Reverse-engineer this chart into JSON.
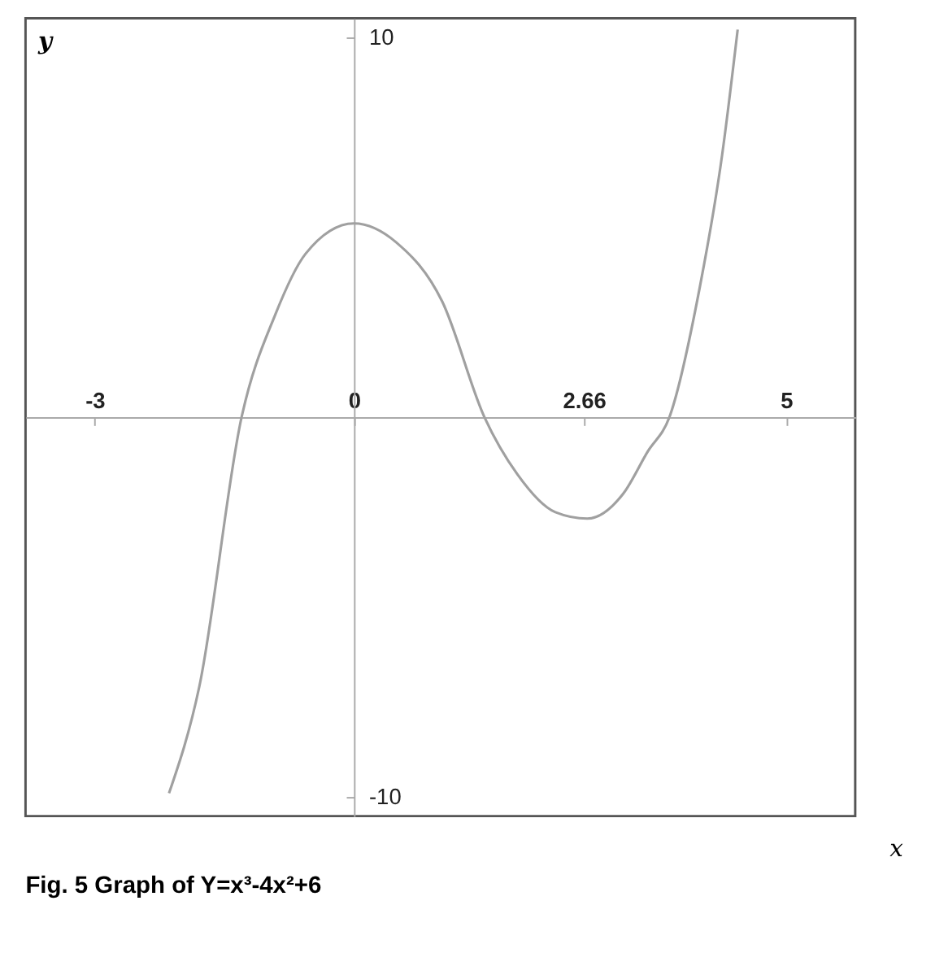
{
  "chart_data": {
    "type": "line",
    "title": "Fig. 5 Graph of Y=x³-4x²+6",
    "xlabel": "x",
    "ylabel": "y",
    "x": [
      -2.14,
      -1.79,
      -1.3,
      -0.91,
      -0.56,
      0,
      0.49,
      1.02,
      1.51,
      1.89,
      2.33,
      2.7,
      3.12,
      3.4,
      3.65,
      4.0,
      4.26,
      4.44
    ],
    "series": [
      {
        "color": "#a0a0a0",
        "values": [
          -9.9,
          -7.1,
          0,
          2.7,
          4.3,
          5.1,
          4.6,
          3.05,
          0,
          -1.5,
          -2.5,
          -2.67,
          -2.0,
          -0.9,
          0,
          3.4,
          6.9,
          10.2
        ]
      }
    ],
    "xlim": [
      -3.8,
      5.8
    ],
    "ylim": [
      -10.5,
      10.5
    ],
    "xticks": [
      {
        "value": -3,
        "label": "-3"
      },
      0,
      {
        "value": 2.66,
        "label": "2.66"
      },
      5
    ],
    "yticks": [
      {
        "value": -10,
        "label": "-10"
      },
      10
    ],
    "grid": false,
    "marker": "none",
    "line_style": "solid"
  }
}
